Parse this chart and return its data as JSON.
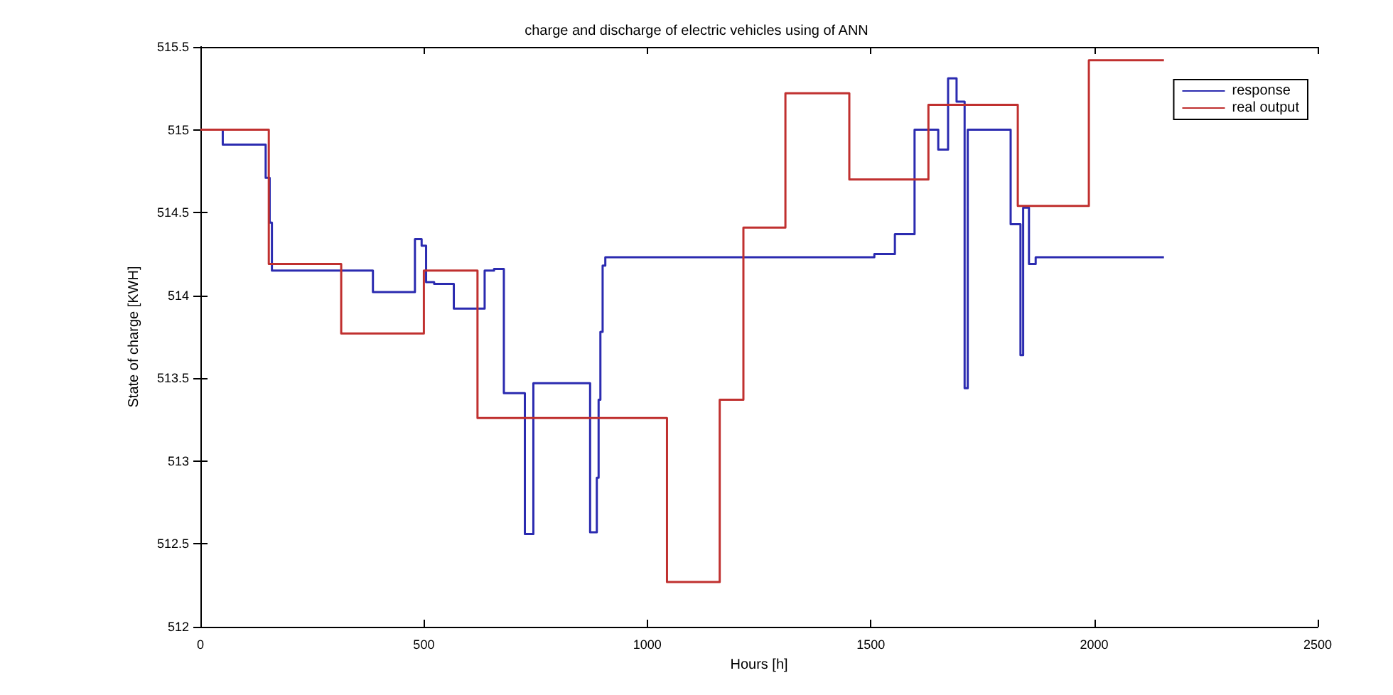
{
  "chart_data": {
    "type": "step",
    "title": "charge and discharge of electric vehicles using of ANN",
    "xlabel": "Hours [h]",
    "ylabel": "State of charge [KWH]",
    "xlim": [
      0,
      2500
    ],
    "xticks": [
      0,
      500,
      1000,
      1500,
      2000,
      2500
    ],
    "ylim": [
      512,
      515.5
    ],
    "yticks": [
      512,
      512.5,
      513,
      513.5,
      514,
      514.5,
      515,
      515.5
    ],
    "grid": false,
    "legend": "top right",
    "line_style": "solid",
    "marker": "none",
    "series": [
      {
        "name": "response",
        "color": "#2b2bb0",
        "x": [
          0,
          50,
          146,
          155,
          160,
          386,
          480,
          495,
          505,
          523,
          567,
          636,
          657,
          679,
          726,
          745,
          872,
          887,
          891,
          895,
          900,
          906,
          1508,
          1554,
          1598,
          1651,
          1673,
          1692,
          1710,
          1717,
          1813,
          1835,
          1841,
          1854,
          1869,
          2156
        ],
        "values": [
          515.0,
          514.91,
          514.71,
          514.44,
          514.15,
          514.02,
          514.34,
          514.3,
          514.08,
          514.07,
          513.92,
          514.15,
          514.16,
          513.41,
          512.56,
          513.47,
          512.57,
          512.9,
          513.37,
          513.78,
          514.18,
          514.23,
          514.25,
          514.37,
          515.0,
          514.88,
          515.31,
          515.17,
          513.44,
          515.0,
          514.43,
          513.64,
          514.53,
          514.19,
          514.23,
          514.23
        ]
      },
      {
        "name": "real output",
        "color": "#c0302f",
        "x": [
          0,
          153,
          315,
          500,
          620,
          1044,
          1162,
          1215,
          1309,
          1452,
          1629,
          1829,
          1988,
          2156
        ],
        "values": [
          515.0,
          514.19,
          513.77,
          514.15,
          513.26,
          512.27,
          513.37,
          514.41,
          515.22,
          514.7,
          515.15,
          514.54,
          515.42,
          515.42
        ]
      }
    ]
  }
}
